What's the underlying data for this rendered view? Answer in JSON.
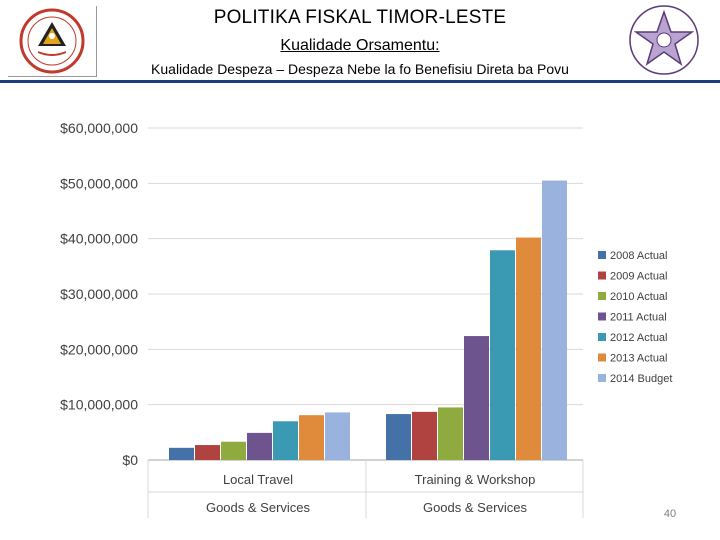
{
  "header": {
    "title": "POLITIKA FISKAL TIMOR-LESTE",
    "subtitle": "Kualidade Orsamentu:",
    "subtitle2": "Kualidade Despeza – Despeza  Nebe la fo Benefisiu Direta ba Povu",
    "rule_color": "#1f3d7a"
  },
  "logos": {
    "left_icon": "timor-leste-emblem-icon",
    "right_icon": "star-seal-icon"
  },
  "chart_data": {
    "type": "bar",
    "categories": [
      "Local Travel",
      "Training & Workshop"
    ],
    "groups": [
      "Goods & Services",
      "Goods & Services"
    ],
    "series": [
      {
        "name": "2008 Actual",
        "color": "#4472a8",
        "values": [
          2200000,
          8300000
        ]
      },
      {
        "name": "2009 Actual",
        "color": "#b0423f",
        "values": [
          2700000,
          8700000
        ]
      },
      {
        "name": "2010 Actual",
        "color": "#8faa3f",
        "values": [
          3300000,
          9500000
        ]
      },
      {
        "name": "2011 Actual",
        "color": "#6e548f",
        "values": [
          4900000,
          22400000
        ]
      },
      {
        "name": "2012 Actual",
        "color": "#3a9ab3",
        "values": [
          7000000,
          37900000
        ]
      },
      {
        "name": "2013 Actual",
        "color": "#e08a3c",
        "values": [
          8100000,
          40200000
        ]
      },
      {
        "name": "2014 Budget",
        "color": "#99b3de",
        "values": [
          8600000,
          50500000
        ]
      }
    ],
    "yticks": [
      "$0",
      "$10,000,000",
      "$20,000,000",
      "$30,000,000",
      "$40,000,000",
      "$50,000,000",
      "$60,000,000"
    ],
    "ylim": [
      0,
      60000000
    ],
    "grid": true,
    "legend_position": "right"
  },
  "page": {
    "number": "40"
  }
}
